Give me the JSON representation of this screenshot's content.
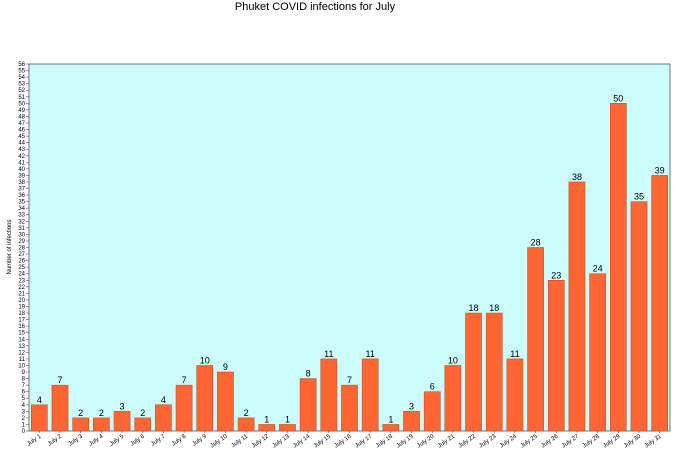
{
  "chart_data": {
    "type": "bar",
    "title": "Phuket COVID infections for July",
    "ylabel": "Number of infections",
    "xlabel": "",
    "ylim": [
      0,
      56
    ],
    "grid": false,
    "legend": "none",
    "colors": {
      "bar": "#ff6633",
      "bar_stroke": "#b34a22",
      "plot_background": "#ccfcfc",
      "axis": "#555555"
    },
    "categories": [
      "July 1",
      "July 2",
      "July 3",
      "July 4",
      "July 5",
      "July 6",
      "July 7",
      "July 8",
      "July 9",
      "July 10",
      "July 11",
      "July 12",
      "July 13",
      "July 14",
      "July 15",
      "July 16",
      "July 17",
      "July 18",
      "July 19",
      "July 20",
      "July 21",
      "July 22",
      "July 23",
      "July 24",
      "July 25",
      "July 26",
      "July 27",
      "July 28",
      "July 29",
      "July 30",
      "July 31"
    ],
    "values": [
      4,
      7,
      2,
      2,
      3,
      2,
      4,
      7,
      10,
      9,
      2,
      1,
      1,
      8,
      11,
      7,
      11,
      1,
      3,
      6,
      10,
      18,
      18,
      11,
      28,
      23,
      38,
      24,
      50,
      35,
      39
    ]
  }
}
